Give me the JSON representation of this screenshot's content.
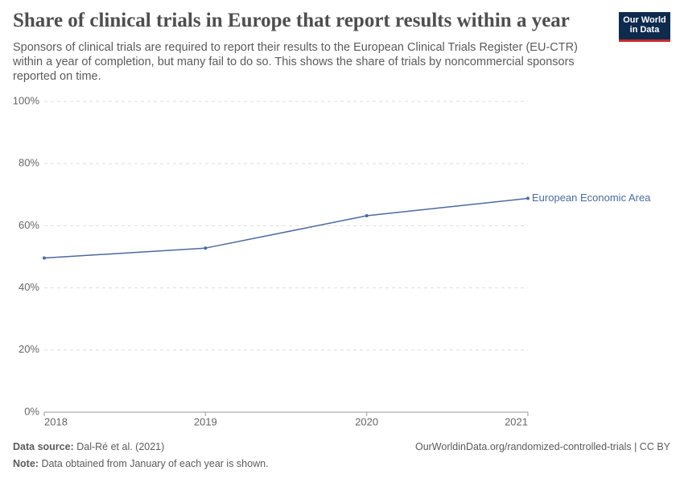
{
  "chart_data": {
    "type": "line",
    "title": "Share of clinical trials in Europe that report results within a year",
    "subtitle": "Sponsors of clinical trials are required to report their results to the European Clinical Trials Register (EU-CTR) within a year of completion, but many fail to do so. This shows the share of trials by noncommercial sponsors reported on time.",
    "x": [
      2018,
      2019,
      2020,
      2021
    ],
    "series": [
      {
        "name": "European Economic Area",
        "color": "#4c6a9c",
        "values": [
          49.6,
          52.8,
          63.2,
          68.8
        ]
      }
    ],
    "xlim": [
      2018,
      2021
    ],
    "xticks": [
      2018,
      2019,
      2020,
      2021
    ],
    "ylim": [
      0,
      100
    ],
    "yticks": [
      {
        "value": 0,
        "label": "0%"
      },
      {
        "value": 20,
        "label": "20%"
      },
      {
        "value": 40,
        "label": "40%"
      },
      {
        "value": 60,
        "label": "60%"
      },
      {
        "value": 80,
        "label": "80%"
      },
      {
        "value": 100,
        "label": "100%"
      }
    ],
    "grid": true
  },
  "logo": [
    "Our World",
    "in Data"
  ],
  "footer": {
    "source_label": "Data source:",
    "source": "Dal-Ré et al. (2021)",
    "url": "OurWorldinData.org/randomized-controlled-trials | CC BY",
    "note_label": "Note:",
    "note": "Data obtained from January of each year is shown."
  }
}
